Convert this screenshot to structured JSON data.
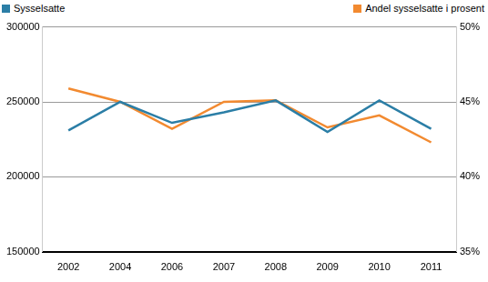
{
  "chart_data": {
    "type": "line",
    "categories": [
      "2002",
      "2004",
      "2006",
      "2007",
      "2008",
      "2009",
      "2010",
      "2011"
    ],
    "series": [
      {
        "name": "Sysselsatte",
        "color": "#2b7ea6",
        "values": [
          231000,
          250000,
          236000,
          243000,
          251000,
          230000,
          251000,
          232000
        ]
      },
      {
        "name": "Andel sysselsatte i prosent",
        "color": "#f28a30",
        "axis": "y2",
        "values": [
          45.9,
          45.0,
          43.2,
          45.0,
          45.1,
          43.3,
          44.1,
          42.3
        ]
      }
    ],
    "ylim": [
      150000,
      300000
    ],
    "yticks": [
      150000,
      200000,
      250000,
      300000
    ],
    "y2lim": [
      35,
      50
    ],
    "y2ticks": [
      {
        "value": 35,
        "label": "35%"
      },
      {
        "value": 40,
        "label": "40%"
      },
      {
        "value": 45,
        "label": "45%"
      },
      {
        "value": 50,
        "label": "50%"
      }
    ],
    "grid": true,
    "legend": "top"
  }
}
